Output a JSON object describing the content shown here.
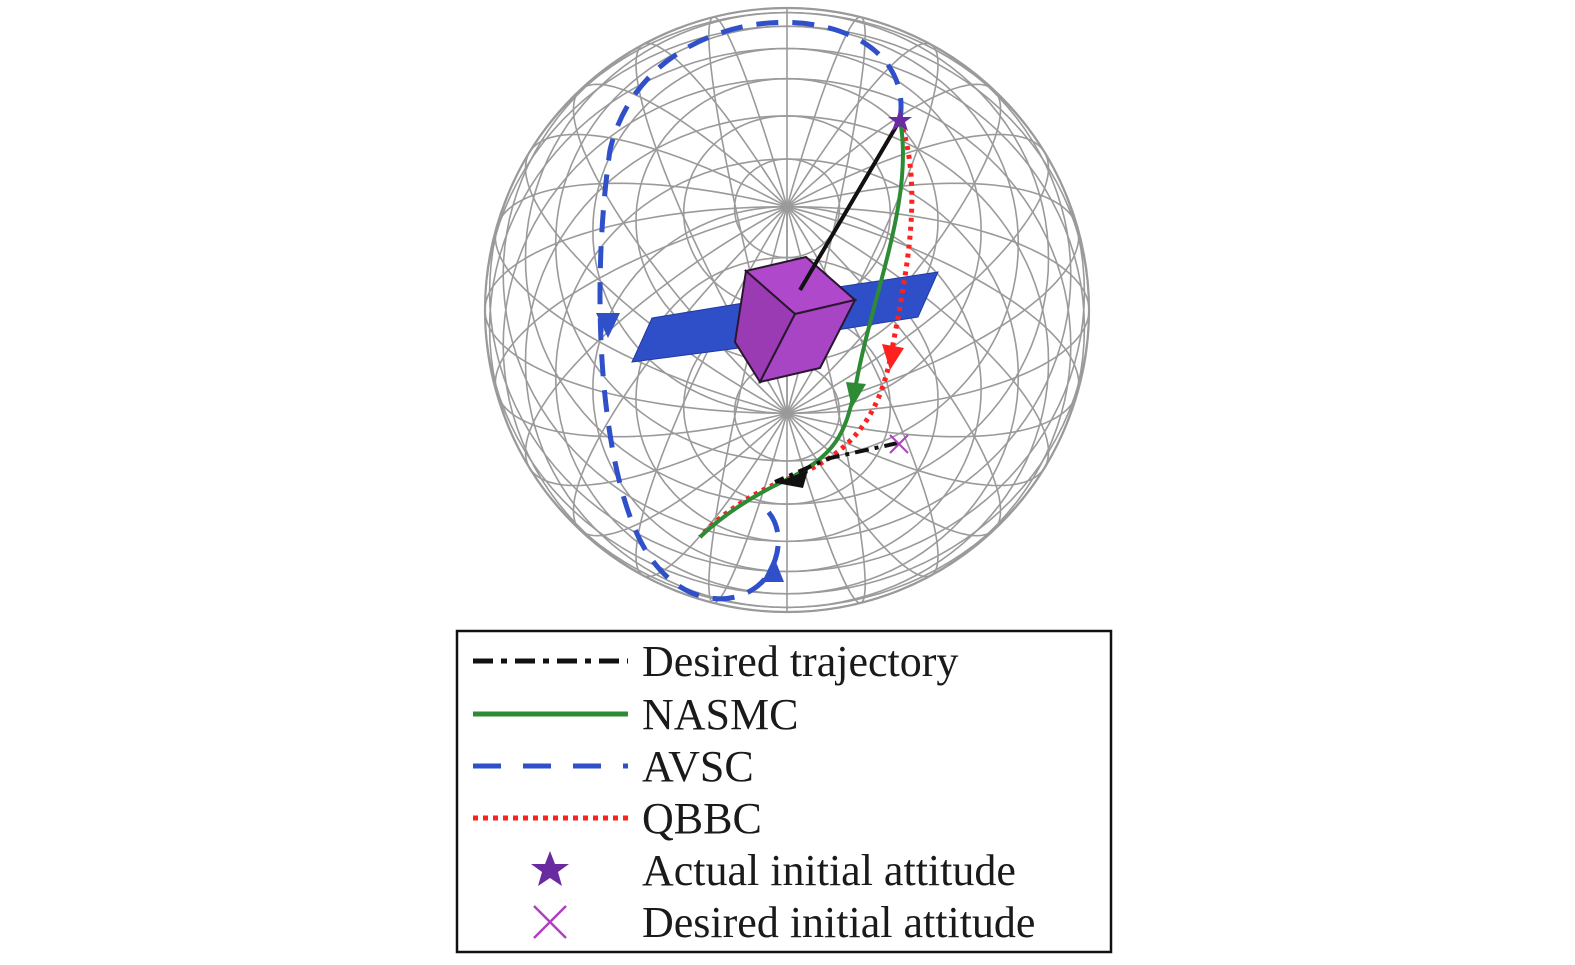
{
  "legend": {
    "entries": [
      {
        "label": "Desired trajectory",
        "color": "#111111",
        "style": "dash-dot"
      },
      {
        "label": "NASMC",
        "color": "#2e8b35",
        "style": "solid"
      },
      {
        "label": "AVSC",
        "color": "#2f50c8",
        "style": "dashed"
      },
      {
        "label": "QBBC",
        "color": "#ff2020",
        "style": "dotted"
      },
      {
        "label": "Actual initial attitude",
        "color": "#6a2aa0",
        "style": "star-marker"
      },
      {
        "label": "Desired initial attitude",
        "color": "#b040c0",
        "style": "x-marker"
      }
    ]
  },
  "colors": {
    "sphere_grid": "#9a9a9a",
    "cube": "#a845c4",
    "solar_panel": "#2f4fc8",
    "attitude_vector": "#111111"
  }
}
